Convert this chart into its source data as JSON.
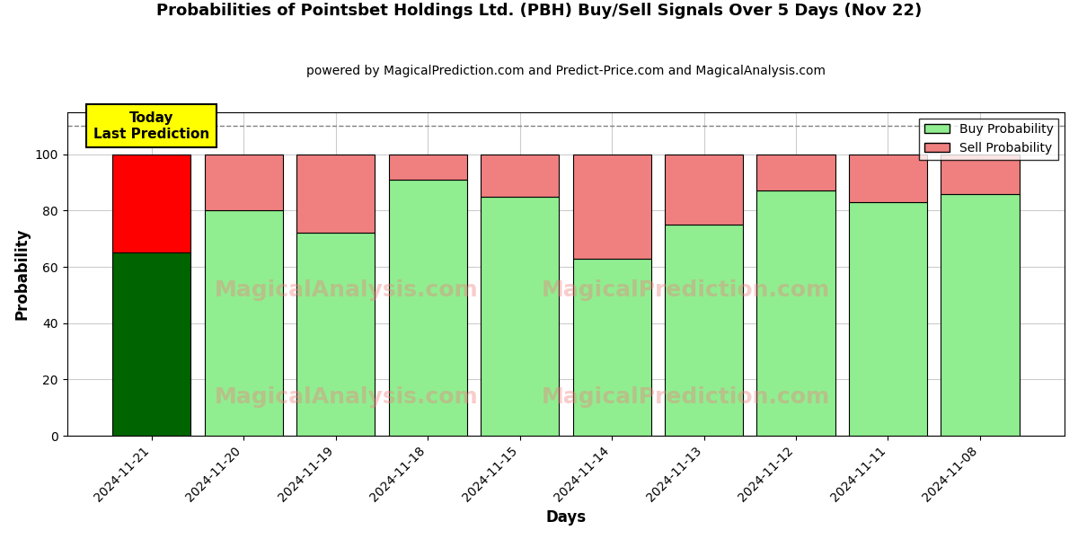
{
  "title": "Probabilities of Pointsbet Holdings Ltd. (PBH) Buy/Sell Signals Over 5 Days (Nov 22)",
  "subtitle": "powered by MagicalPrediction.com and Predict-Price.com and MagicalAnalysis.com",
  "xlabel": "Days",
  "ylabel": "Probability",
  "dates": [
    "2024-11-21",
    "2024-11-20",
    "2024-11-19",
    "2024-11-18",
    "2024-11-15",
    "2024-11-14",
    "2024-11-13",
    "2024-11-12",
    "2024-11-11",
    "2024-11-08"
  ],
  "buy_probs": [
    65,
    80,
    72,
    91,
    85,
    63,
    75,
    87,
    83,
    86
  ],
  "sell_probs": [
    35,
    20,
    28,
    9,
    15,
    37,
    25,
    13,
    17,
    14
  ],
  "today_buy_color": "#006400",
  "today_sell_color": "#FF0000",
  "other_buy_color": "#90EE90",
  "other_sell_color": "#F08080",
  "today_label_bg": "#FFFF00",
  "dashed_line_y": 110,
  "ylim": [
    0,
    115
  ],
  "yticks": [
    0,
    20,
    40,
    60,
    80,
    100
  ],
  "figsize": [
    12,
    6
  ],
  "dpi": 100,
  "background_color": "#FFFFFF",
  "grid_color": "#CCCCCC",
  "bar_width": 0.85
}
